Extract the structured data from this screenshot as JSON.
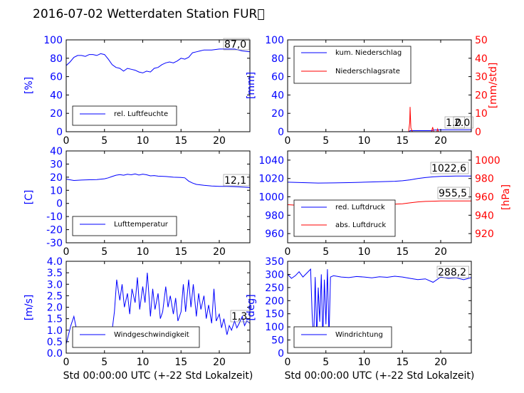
{
  "title": "2016-07-02 Wetterdaten Station FUR\u0000",
  "colors": {
    "primary": "#0000ff",
    "secondary": "#ff0000",
    "axis": "#000000"
  },
  "chart_data": [
    {
      "type": "line",
      "panel": "top-left",
      "ylabel": "[%]",
      "ylim": [
        0,
        100
      ],
      "yticks": [
        0,
        20,
        40,
        60,
        80,
        100
      ],
      "xlim": [
        0,
        24
      ],
      "xticks": [
        0,
        5,
        10,
        15,
        20
      ],
      "legend_position": "bottom-left",
      "series": [
        {
          "name": "rel. Luftfeuchte",
          "color": "#0000ff",
          "x": [
            0,
            0.5,
            1,
            1.5,
            2,
            2.5,
            3,
            3.5,
            4,
            4.5,
            5,
            5.5,
            6,
            6.5,
            7,
            7.5,
            8,
            8.5,
            9,
            9.5,
            10,
            10.5,
            11,
            11.5,
            12,
            12.5,
            13,
            13.5,
            14,
            14.5,
            15,
            15.5,
            16,
            16.5,
            17,
            17.5,
            18,
            19,
            20,
            21,
            22,
            23,
            24
          ],
          "y": [
            72,
            76,
            81,
            83,
            83,
            82,
            84,
            84,
            83,
            85,
            84,
            79,
            73,
            70,
            69,
            66,
            69,
            68,
            67,
            65,
            64,
            66,
            65,
            69,
            70,
            73,
            75,
            76,
            75,
            77,
            80,
            79,
            81,
            86,
            87,
            88,
            89,
            89,
            90,
            90,
            90,
            88,
            87
          ]
        }
      ],
      "annotations": [
        {
          "text": "87,0",
          "x": 22,
          "y": 89
        }
      ]
    },
    {
      "type": "line",
      "panel": "top-right",
      "ylabel": "[mm]",
      "ylim": [
        0,
        100
      ],
      "yticks": [
        0,
        20,
        40,
        60,
        80,
        100
      ],
      "y2label": "[mm/std]",
      "y2lim": [
        0,
        50
      ],
      "y2ticks": [
        0,
        10,
        20,
        30,
        40,
        50
      ],
      "xlim": [
        0,
        24
      ],
      "xticks": [
        0,
        5,
        10,
        15,
        20
      ],
      "legend_position": "top-left",
      "series": [
        {
          "name": "kum. Niederschlag",
          "color": "#0000ff",
          "axis": "left",
          "x": [
            0,
            15.9,
            16,
            18.9,
            19,
            19.6,
            20,
            24
          ],
          "y": [
            0,
            0,
            1.2,
            1.2,
            1.8,
            2.0,
            2.0,
            2.0
          ]
        },
        {
          "name": "Niederschlagsrate",
          "color": "#ff0000",
          "axis": "right",
          "x": [
            0,
            15.8,
            15.95,
            16.0,
            16.1,
            16.3,
            18.8,
            18.95,
            19.1,
            19.5,
            19.6,
            19.7,
            20.5,
            24
          ],
          "y": [
            0,
            0,
            5,
            13.5,
            2,
            0,
            0,
            2.5,
            0,
            0,
            1.5,
            0,
            0,
            0
          ]
        }
      ],
      "annotations": [
        {
          "text": "1.0",
          "x": 22.5,
          "y": 5
        },
        {
          "text": "2.0",
          "x": 22.5,
          "y": 5
        }
      ]
    },
    {
      "type": "line",
      "panel": "middle-left",
      "ylabel": "[C]",
      "ylim": [
        -30,
        40
      ],
      "yticks": [
        -30,
        -20,
        -10,
        0,
        10,
        20,
        30,
        40
      ],
      "xlim": [
        0,
        24
      ],
      "xticks": [
        0,
        5,
        10,
        15,
        20
      ],
      "legend_position": "bottom-left",
      "series": [
        {
          "name": "Lufttemperatur",
          "color": "#0000ff",
          "x": [
            0,
            1,
            2,
            3,
            4,
            5,
            5.5,
            6,
            6.5,
            7,
            7.5,
            8,
            8.5,
            9,
            9.5,
            10,
            10.5,
            11,
            11.5,
            12,
            13,
            14,
            15,
            15.5,
            16,
            16.5,
            17,
            18,
            19,
            20,
            21,
            22,
            23,
            24
          ],
          "y": [
            18.5,
            17.5,
            17.8,
            18,
            18.2,
            18.8,
            19.5,
            20.5,
            21.5,
            22,
            21.5,
            22.2,
            21.8,
            22.5,
            21.6,
            22.3,
            21.8,
            21,
            21.2,
            20.8,
            20.5,
            20,
            19.8,
            19.5,
            17,
            15.5,
            14.5,
            13.8,
            13.3,
            13,
            13,
            12.8,
            12.5,
            12.1
          ]
        }
      ],
      "annotations": [
        {
          "text": "12,1",
          "x": 22,
          "y": 15
        }
      ]
    },
    {
      "type": "line",
      "panel": "middle-right",
      "ylim": [
        950,
        1050
      ],
      "yticks": [
        960,
        980,
        1000,
        1020,
        1040
      ],
      "y2label": "[hPa]",
      "y2lim": [
        910,
        1010
      ],
      "y2ticks": [
        920,
        940,
        960,
        980,
        1000
      ],
      "xlim": [
        0,
        24
      ],
      "xticks": [
        0,
        5,
        10,
        15,
        20
      ],
      "legend_position": "bottom-left",
      "series": [
        {
          "name": "red. Luftdruck",
          "color": "#0000ff",
          "axis": "left",
          "x": [
            0,
            2,
            4,
            6,
            8,
            10,
            12,
            14,
            15,
            16,
            17,
            18,
            19,
            20,
            21,
            22,
            23,
            24
          ],
          "y": [
            1016,
            1015.5,
            1015,
            1015.2,
            1015.5,
            1016,
            1016.5,
            1017,
            1017.5,
            1018.5,
            1020,
            1021,
            1021.8,
            1022.3,
            1022.5,
            1022.6,
            1022.6,
            1022.6
          ]
        },
        {
          "name": "abs. Luftdruck",
          "color": "#ff0000",
          "axis": "right",
          "x": [
            0,
            2,
            4,
            6,
            8,
            10,
            12,
            14,
            15,
            16,
            17,
            18,
            19,
            20,
            21,
            22,
            23,
            24
          ],
          "y": [
            951.5,
            950.5,
            950,
            950.3,
            950.5,
            951,
            951.5,
            952,
            952.5,
            953.5,
            954.5,
            955,
            955.3,
            955.5,
            955.5,
            955.5,
            955.5,
            955.5
          ]
        }
      ],
      "annotations": [
        {
          "text": "1022,6",
          "x": 20.5,
          "y": 1027
        },
        {
          "text": "955,5",
          "x": 21,
          "y": 1000
        }
      ]
    },
    {
      "type": "line",
      "panel": "bottom-left",
      "ylabel": "[m/s]",
      "ylim": [
        0,
        4
      ],
      "yticks": [
        0.0,
        0.5,
        1.0,
        1.5,
        2.0,
        2.5,
        3.0,
        3.5,
        4.0
      ],
      "xlim": [
        0,
        24
      ],
      "xlabel": "Std 00:00:00 UTC (+-22 Std Lokalzeit)",
      "xticks": [
        0,
        5,
        10,
        15,
        20
      ],
      "legend_position": "bottom-left",
      "series": [
        {
          "name": "Windgeschwindigkeit",
          "color": "#0000ff",
          "x": [
            0,
            0.3,
            0.6,
            1,
            1.3,
            1.6,
            2,
            2.4,
            2.8,
            3.2,
            3.6,
            4,
            4.4,
            4.8,
            5.2,
            5.6,
            6,
            6.3,
            6.6,
            7,
            7.3,
            7.6,
            8,
            8.3,
            8.6,
            9,
            9.3,
            9.6,
            10,
            10.3,
            10.6,
            11,
            11.3,
            11.6,
            12,
            12.3,
            12.6,
            13,
            13.3,
            13.6,
            14,
            14.3,
            14.6,
            15,
            15.3,
            15.6,
            16,
            16.3,
            16.6,
            17,
            17.3,
            17.6,
            18,
            18.3,
            18.6,
            19,
            19.3,
            19.6,
            20,
            20.3,
            20.6,
            21,
            21.3,
            21.6,
            22,
            22.3,
            22.6,
            23,
            23.3,
            23.6,
            24
          ],
          "y": [
            0.4,
            0.8,
            1.2,
            1.6,
            1.1,
            0.9,
            0.7,
            0.5,
            0.4,
            0.6,
            0.3,
            0.5,
            0.3,
            0.4,
            0.3,
            0.4,
            1.0,
            1.8,
            3.2,
            2.3,
            3.0,
            2.0,
            2.6,
            1.7,
            2.8,
            2.2,
            3.3,
            1.9,
            2.9,
            2.2,
            3.5,
            1.6,
            2.8,
            1.9,
            2.6,
            1.5,
            1.8,
            2.9,
            2.0,
            2.5,
            1.7,
            2.4,
            1.4,
            1.8,
            3.0,
            1.8,
            3.2,
            2.0,
            3.0,
            1.6,
            2.6,
            1.9,
            2.5,
            1.5,
            2.1,
            1.3,
            2.8,
            1.4,
            1.7,
            1.1,
            1.5,
            0.8,
            1.2,
            1.0,
            1.4,
            1.1,
            1.3,
            1.6,
            1.2,
            1.4,
            1.3
          ]
        }
      ],
      "annotations": [
        {
          "text": "1,3",
          "x": 22.5,
          "y": 1.45
        }
      ]
    },
    {
      "type": "line",
      "panel": "bottom-right",
      "ylabel": "[deg]",
      "ylim": [
        0,
        350
      ],
      "yticks": [
        0,
        50,
        100,
        150,
        200,
        250,
        300,
        350
      ],
      "xlim": [
        0,
        24
      ],
      "xlabel": "Std 00:00:00 UTC (+-22 Std Lokalzeit)",
      "xticks": [
        0,
        5,
        10,
        15,
        20
      ],
      "legend_position": "bottom-left",
      "series": [
        {
          "name": "Windrichtung",
          "color": "#0000ff",
          "x": [
            0,
            0.5,
            1,
            1.5,
            2,
            2.5,
            3,
            3.2,
            3.4,
            3.6,
            3.8,
            4,
            4.2,
            4.4,
            4.6,
            4.8,
            5,
            5.2,
            5.4,
            5.6,
            6,
            7,
            8,
            9,
            10,
            11,
            12,
            13,
            14,
            15,
            16,
            17,
            18,
            19,
            20,
            21,
            22,
            23,
            24
          ],
          "y": [
            300,
            285,
            295,
            310,
            290,
            305,
            320,
            150,
            40,
            290,
            60,
            250,
            120,
            300,
            50,
            280,
            110,
            320,
            60,
            290,
            295,
            290,
            288,
            292,
            290,
            287,
            291,
            289,
            293,
            290,
            285,
            280,
            283,
            270,
            290,
            285,
            287,
            280,
            288
          ]
        }
      ],
      "annotations": [
        {
          "text": "288,2",
          "x": 21.5,
          "y": 300
        }
      ]
    }
  ]
}
